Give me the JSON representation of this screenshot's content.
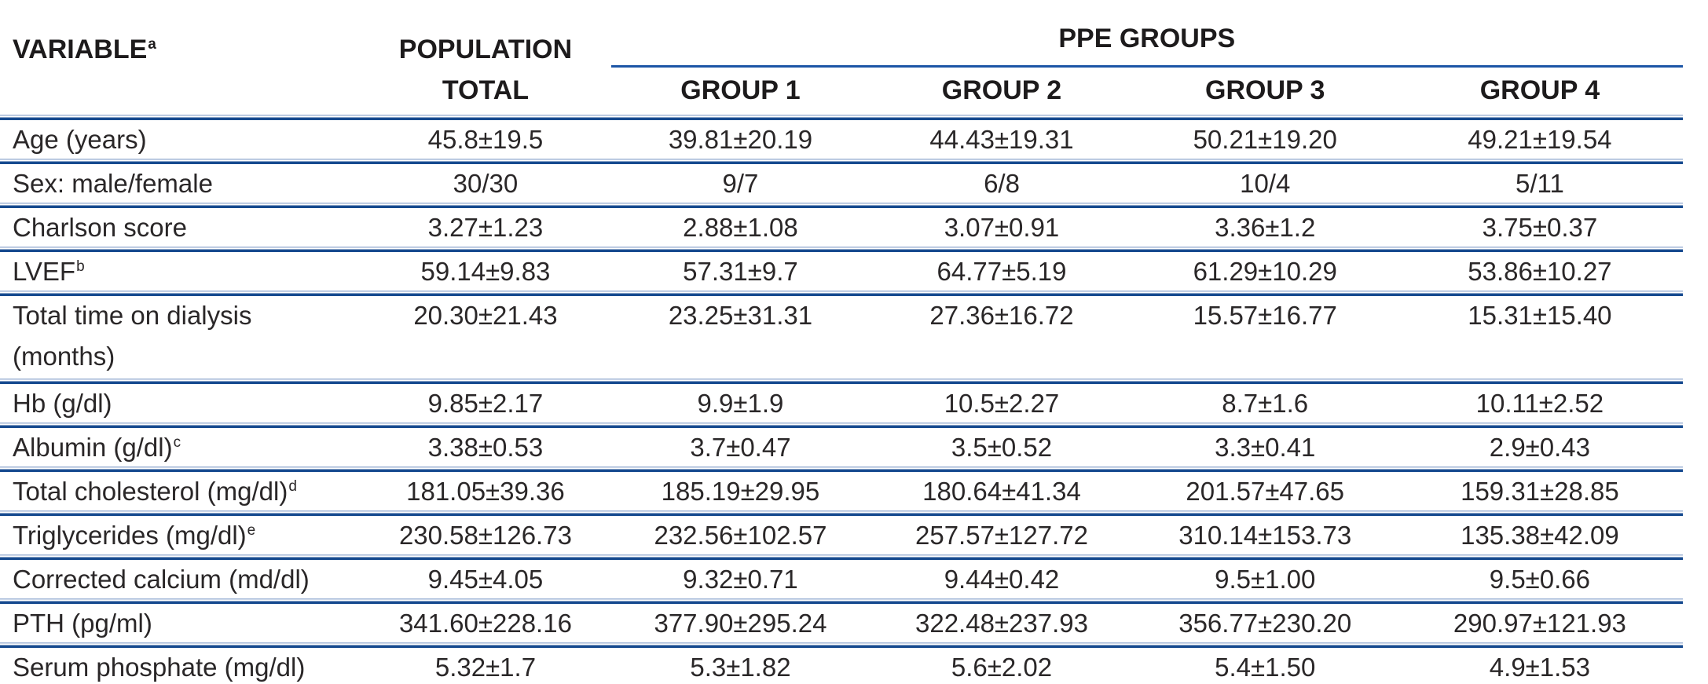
{
  "colors": {
    "rule_dark": "#164a8f",
    "rule_light": "#a0b5d6",
    "spanner_line": "#1c55a6",
    "header_text": "#1d1b1c",
    "body_text": "#2a2728",
    "background": "#ffffff"
  },
  "table": {
    "col1_header": "VARIABLE",
    "col1_header_sup": "a",
    "col2_header_line1": "POPULATION",
    "col2_header_line2": "TOTAL",
    "spanner_label": "PPE GROUPS",
    "group_headers": [
      "GROUP 1",
      "GROUP 2",
      "GROUP 3",
      "GROUP 4"
    ],
    "rows": [
      {
        "label": "Age (years)",
        "sup": "",
        "label_line2": "",
        "values": [
          "45.8±19.5",
          "39.81±20.19",
          "44.43±19.31",
          "50.21±19.20",
          "49.21±19.54"
        ]
      },
      {
        "label": "Sex: male/female",
        "sup": "",
        "label_line2": "",
        "values": [
          "30/30",
          "9/7",
          "6/8",
          "10/4",
          "5/11"
        ]
      },
      {
        "label": "Charlson score",
        "sup": "",
        "label_line2": "",
        "values": [
          "3.27±1.23",
          "2.88±1.08",
          "3.07±0.91",
          "3.36±1.2",
          "3.75±0.37"
        ]
      },
      {
        "label": "LVEF",
        "sup": "b",
        "label_line2": "",
        "values": [
          "59.14±9.83",
          "57.31±9.7",
          "64.77±5.19",
          "61.29±10.29",
          "53.86±10.27"
        ]
      },
      {
        "label": "Total time on dialysis",
        "sup": "",
        "label_line2": "(months)",
        "values": [
          "20.30±21.43",
          "23.25±31.31",
          "27.36±16.72",
          "15.57±16.77",
          "15.31±15.40"
        ]
      },
      {
        "label": "Hb (g/dl)",
        "sup": "",
        "label_line2": "",
        "values": [
          "9.85±2.17",
          "9.9±1.9",
          "10.5±2.27",
          "8.7±1.6",
          "10.11±2.52"
        ]
      },
      {
        "label": "Albumin (g/dl)",
        "sup": "c",
        "label_line2": "",
        "values": [
          "3.38±0.53",
          "3.7±0.47",
          "3.5±0.52",
          "3.3±0.41",
          "2.9±0.43"
        ]
      },
      {
        "label": "Total cholesterol (mg/dl)",
        "sup": "d",
        "label_line2": "",
        "values": [
          "181.05±39.36",
          "185.19±29.95",
          "180.64±41.34",
          "201.57±47.65",
          "159.31±28.85"
        ]
      },
      {
        "label": "Triglycerides (mg/dl)",
        "sup": "e",
        "label_line2": "",
        "values": [
          "230.58±126.73",
          "232.56±102.57",
          "257.57±127.72",
          "310.14±153.73",
          "135.38±42.09"
        ]
      },
      {
        "label": "Corrected calcium (md/dl)",
        "sup": "",
        "label_line2": "",
        "values": [
          "9.45±4.05",
          "9.32±0.71",
          "9.44±0.42",
          "9.5±1.00",
          "9.5±0.66"
        ]
      },
      {
        "label": "PTH (pg/ml)",
        "sup": "",
        "label_line2": "",
        "values": [
          "341.60±228.16",
          "377.90±295.24",
          "322.48±237.93",
          "356.77±230.20",
          "290.97±121.93"
        ]
      },
      {
        "label": "Serum phosphate (mg/dl)",
        "sup": "",
        "label_line2": "",
        "values": [
          "5.32±1.7",
          "5.3±1.82",
          "5.6±2.02",
          "5.4±1.50",
          "4.9±1.53"
        ]
      }
    ]
  }
}
